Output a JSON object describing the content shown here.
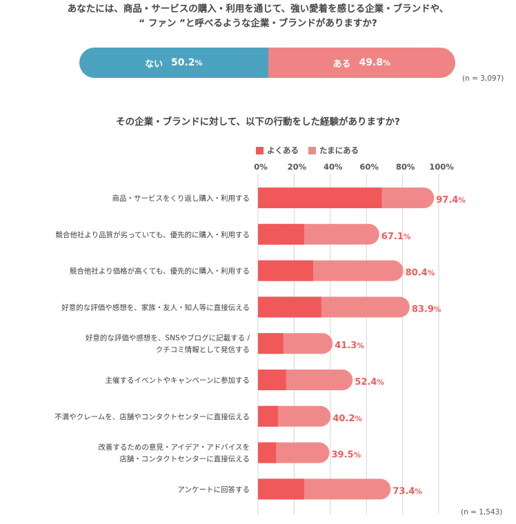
{
  "question1": {
    "line1": "あなたには、商品・サービスの購入・利用を通じて、強い愛着を感じる企業・ブランドや、",
    "line2": "“ ファン ”と呼べるような企業・ブランドがありますか?"
  },
  "question2": {
    "title": "その企業・ブランドに対して、以下の行動をした経験がありますか?"
  },
  "top_bar": {
    "segments": [
      {
        "label": "ない",
        "value": 50.2,
        "color": "#4ba3c0"
      },
      {
        "label": "ある",
        "value": 49.8,
        "color": "#f08484"
      }
    ],
    "n_label": "(n = 3,097)"
  },
  "n_label_bottom": "(n = 1,543)",
  "chart_data": {
    "type": "bar",
    "orientation": "horizontal",
    "stacked": true,
    "legend": [
      {
        "name": "よくある",
        "color": "#f0585a"
      },
      {
        "name": "たまにある",
        "color": "#f08a8a"
      }
    ],
    "legend_position": "top",
    "xlim": [
      0,
      100
    ],
    "xticks": [
      "0%",
      "20%",
      "40%",
      "60%",
      "80%",
      "100%"
    ],
    "categories": [
      [
        "商品・サービスをくり返し購入・利用する"
      ],
      [
        "競合他社より品質が劣っていても、優先的に購入・利用する"
      ],
      [
        "競合他社より価格が高くても、優先的に購入・利用する"
      ],
      [
        "好意的な評価や感想を、家族・友人・知人等に直接伝える"
      ],
      [
        "好意的な評価や感想を、SNSやブログに記載する /",
        "クチコミ情報として発信する"
      ],
      [
        "主催するイベントやキャンペーンに参加する"
      ],
      [
        "不満やクレームを、店舗やコンタクトセンターに直接伝える"
      ],
      [
        "改善するための意見・アイデア・アドバイスを",
        "店舗・コンタクトセンターに直接伝える"
      ],
      [
        "アンケートに回答する"
      ]
    ],
    "series": [
      {
        "name": "よくある",
        "values": [
          68.5,
          25.5,
          30.5,
          35.0,
          14.0,
          15.5,
          11.0,
          10.0,
          25.5
        ]
      },
      {
        "name": "たまにある",
        "values": [
          28.9,
          41.6,
          49.9,
          48.9,
          27.3,
          36.9,
          29.2,
          29.5,
          47.9
        ]
      }
    ],
    "totals": [
      97.4,
      67.1,
      80.4,
      83.9,
      41.3,
      52.4,
      40.2,
      39.5,
      73.4
    ],
    "grid": true
  }
}
